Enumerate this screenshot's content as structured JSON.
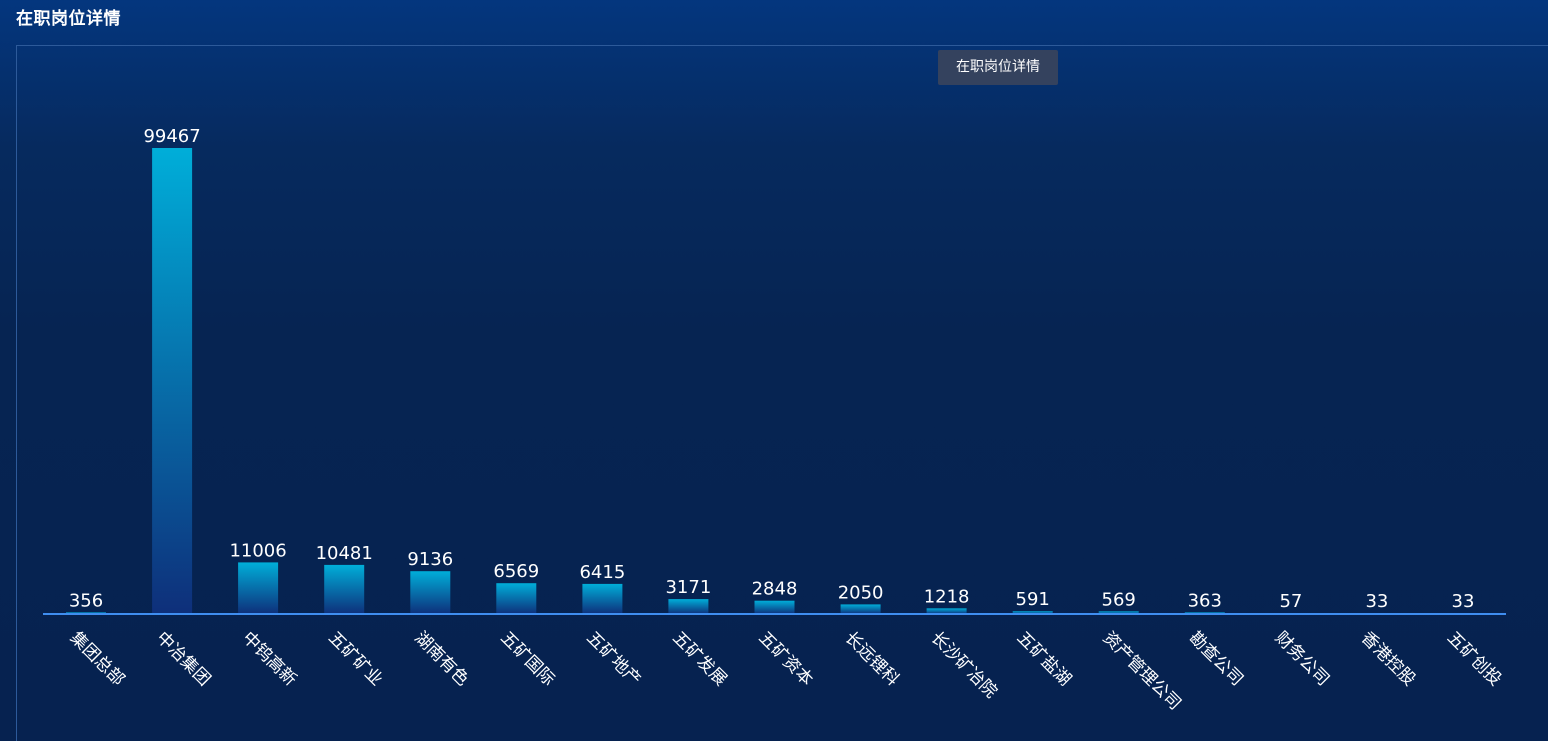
{
  "page": {
    "title": "在职岗位详情"
  },
  "legend": {
    "label": "在职岗位详情"
  },
  "colors": {
    "bar_top": "#00aed9",
    "bar_bottom": "#0e2f7a",
    "axis_line": "#3f8ef0",
    "text": "#ffffff"
  },
  "chart_data": {
    "type": "bar",
    "title": "",
    "xlabel": "",
    "ylabel": "",
    "ylim": [
      0,
      99467
    ],
    "grid": false,
    "legend_position": "top-right",
    "categories": [
      "集团总部",
      "中冶集团",
      "中钨高新",
      "五矿矿业",
      "湖南有色",
      "五矿国际",
      "五矿地产",
      "五矿发展",
      "五矿资本",
      "长远锂科",
      "长沙矿冶院",
      "五矿盐湖",
      "资产管理公司",
      "勘查公司",
      "财务公司",
      "香港控股",
      "五矿创投"
    ],
    "series": [
      {
        "name": "在职岗位详情",
        "values": [
          356,
          99467,
          11006,
          10481,
          9136,
          6569,
          6415,
          3171,
          2848,
          2050,
          1218,
          591,
          569,
          363,
          57,
          33,
          33
        ]
      }
    ]
  }
}
